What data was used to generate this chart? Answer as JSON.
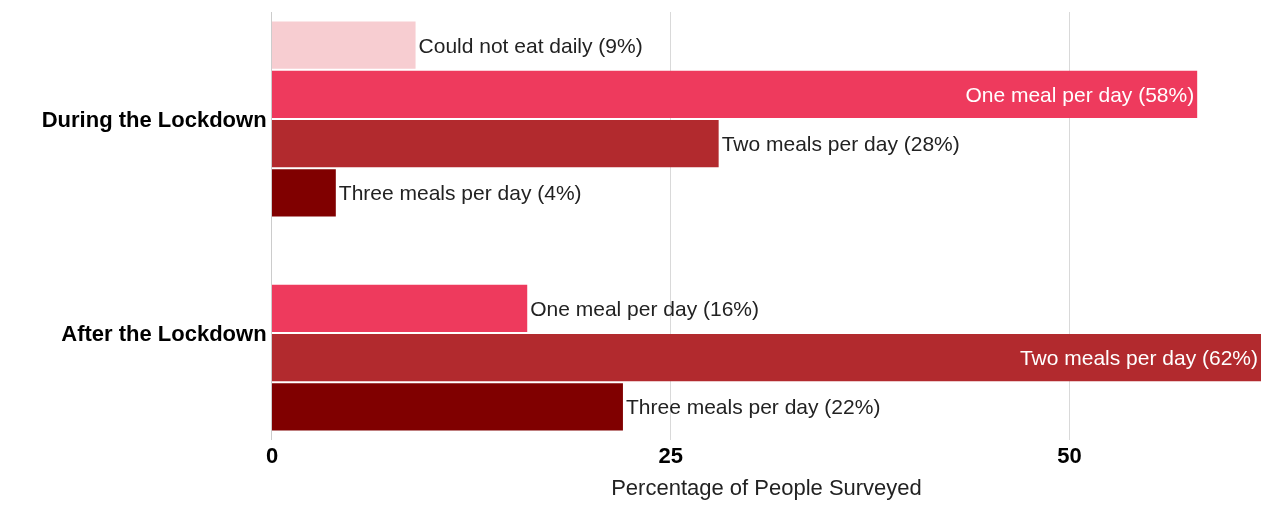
{
  "chart_data": {
    "type": "bar",
    "orientation": "horizontal",
    "categories": [
      "During the Lockdown",
      "After the Lockdown"
    ],
    "xlabel": "Percentage of People Surveyed",
    "xlim": [
      0,
      62
    ],
    "xticks": [
      0,
      25,
      50
    ],
    "grid": "x",
    "series": [
      {
        "color": "#f7cdd1",
        "values": [
          9,
          null
        ],
        "value_labels": [
          "Could not eat daily (9%)",
          null
        ]
      },
      {
        "color": "#ee3a5d",
        "values": [
          58,
          16
        ],
        "value_labels": [
          "One meal per day (58%)",
          "One meal per day (16%)"
        ]
      },
      {
        "color": "#b22a2e",
        "values": [
          28,
          62
        ],
        "value_labels": [
          "Two meals per day (28%)",
          "Two meals per day (62%)"
        ]
      },
      {
        "color": "#800000",
        "values": [
          4,
          22
        ],
        "value_labels": [
          "Three meals per day (4%)",
          "Three meals per day (22%)"
        ]
      }
    ]
  }
}
